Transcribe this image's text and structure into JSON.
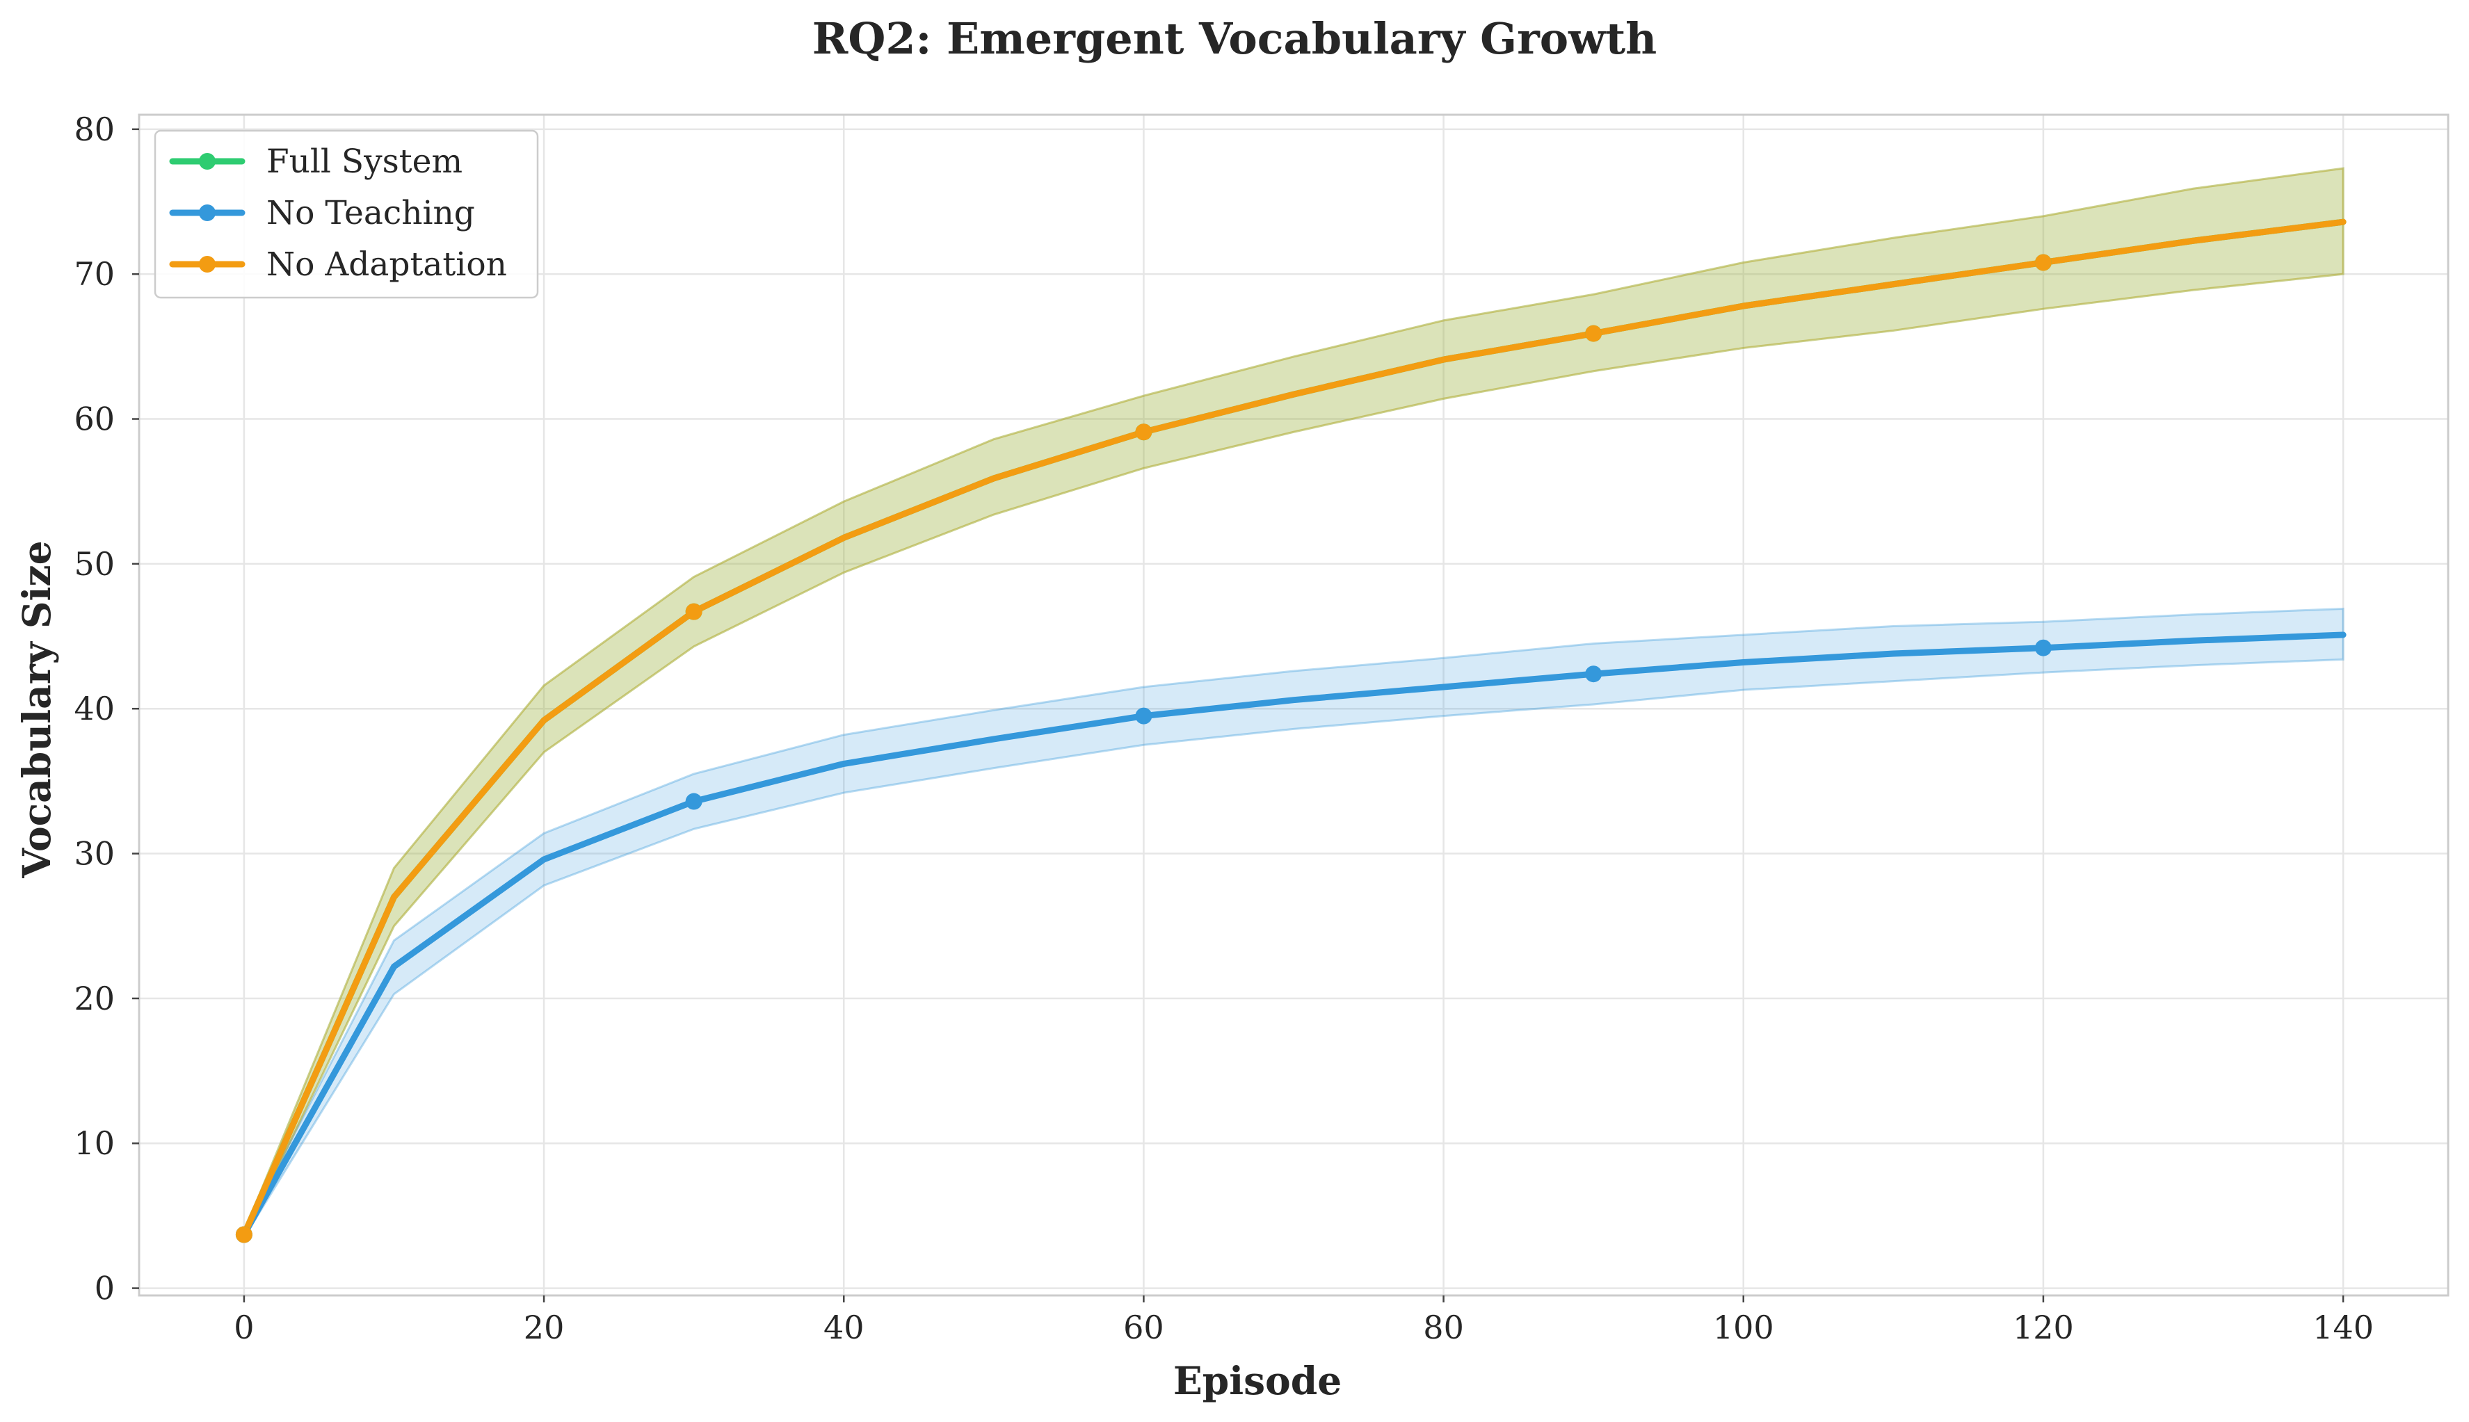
{
  "colors": {
    "full_system": "#2ecc71",
    "no_teaching": "#3498db",
    "no_adaptation": "#f39c12",
    "no_adaptation_band": "#b5c46a",
    "no_teaching_band": "#a9d1f0"
  },
  "chart_data": {
    "type": "line",
    "title": "RQ2: Emergent Vocabulary Growth",
    "xlabel": "Episode",
    "ylabel": "Vocabulary Size",
    "xlim": [
      -7,
      147
    ],
    "ylim": [
      -0.5,
      81
    ],
    "xticks": [
      0,
      20,
      40,
      60,
      80,
      100,
      120,
      140
    ],
    "yticks": [
      0,
      10,
      20,
      30,
      40,
      50,
      60,
      70,
      80
    ],
    "grid": true,
    "legend_position": "top-left",
    "x": [
      0,
      10,
      20,
      30,
      40,
      50,
      60,
      70,
      80,
      90,
      100,
      110,
      120,
      130,
      140
    ],
    "series": [
      {
        "name": "Full System",
        "color": "#2ecc71",
        "values": [
          3.7,
          27.0,
          39.2,
          46.7,
          51.8,
          55.9,
          59.1,
          61.7,
          64.1,
          65.9,
          67.8,
          69.3,
          70.8,
          72.3,
          73.6
        ],
        "lower": [
          3.5,
          25.0,
          37.0,
          44.3,
          49.4,
          53.4,
          56.6,
          59.1,
          61.4,
          63.3,
          64.9,
          66.1,
          67.6,
          68.9,
          70.0
        ],
        "upper": [
          3.9,
          29.0,
          41.6,
          49.1,
          54.3,
          58.6,
          61.6,
          64.3,
          66.8,
          68.6,
          70.8,
          72.5,
          74.0,
          75.9,
          77.3
        ],
        "markers_at": [
          0,
          30,
          60,
          90,
          120
        ],
        "hidden_under_overlay": true
      },
      {
        "name": "No Teaching",
        "color": "#3498db",
        "values": [
          3.7,
          22.2,
          29.6,
          33.6,
          36.2,
          37.9,
          39.5,
          40.6,
          41.5,
          42.4,
          43.2,
          43.8,
          44.2,
          44.7,
          45.1
        ],
        "lower": [
          3.5,
          20.3,
          27.8,
          31.7,
          34.2,
          35.9,
          37.5,
          38.6,
          39.5,
          40.3,
          41.3,
          41.9,
          42.5,
          43.0,
          43.4
        ],
        "upper": [
          3.9,
          24.0,
          31.4,
          35.5,
          38.2,
          39.9,
          41.5,
          42.6,
          43.5,
          44.5,
          45.1,
          45.7,
          46.0,
          46.5,
          46.9
        ],
        "markers_at": [
          0,
          30,
          60,
          90,
          120
        ]
      },
      {
        "name": "No Adaptation",
        "color": "#f39c12",
        "values": [
          3.7,
          27.0,
          39.2,
          46.7,
          51.8,
          55.9,
          59.1,
          61.7,
          64.1,
          65.9,
          67.8,
          69.3,
          70.8,
          72.3,
          73.6
        ],
        "lower": [
          3.5,
          25.0,
          37.0,
          44.3,
          49.4,
          53.4,
          56.6,
          59.1,
          61.4,
          63.3,
          64.9,
          66.1,
          67.6,
          68.9,
          70.0
        ],
        "upper": [
          3.9,
          29.0,
          41.6,
          49.1,
          54.3,
          58.6,
          61.6,
          64.3,
          66.8,
          68.6,
          70.8,
          72.5,
          74.0,
          75.9,
          77.3
        ],
        "markers_at": [
          0,
          30,
          60,
          90,
          120
        ]
      }
    ]
  }
}
